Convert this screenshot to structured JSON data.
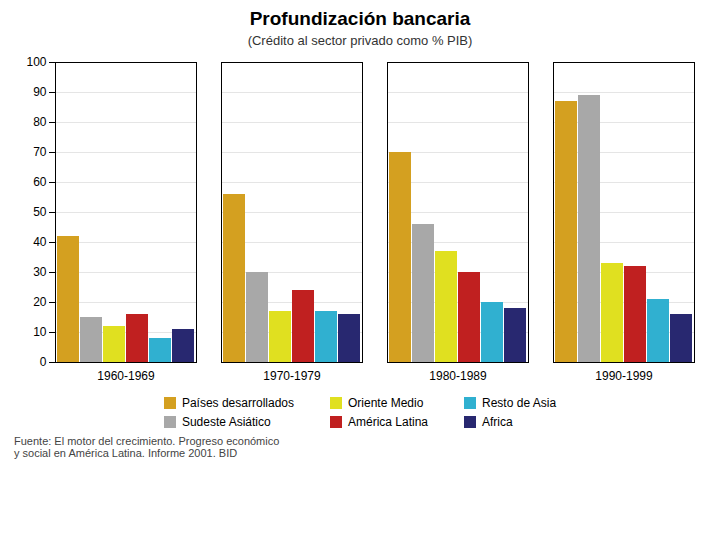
{
  "chart_data": {
    "type": "bar",
    "title": "Profundización bancaria",
    "subtitle": "(Crédito al sector privado como % PIB)",
    "caption": "Fuente: El motor del crecimiento. Progreso económico\ny social en América Latina. Informe 2001. BID",
    "categories": [
      "1960-1969",
      "1970-1979",
      "1980-1989",
      "1990-1999"
    ],
    "series": [
      {
        "name": "Países desarrollados",
        "color": "#D4A020",
        "values": [
          42,
          56,
          70,
          87
        ]
      },
      {
        "name": "Sudeste Asiático",
        "color": "#A8A8A8",
        "values": [
          15,
          30,
          46,
          89
        ]
      },
      {
        "name": "Oriente Medio",
        "color": "#E0E020",
        "values": [
          12,
          17,
          37,
          33
        ]
      },
      {
        "name": "América Latina",
        "color": "#C02020",
        "values": [
          16,
          24,
          30,
          32
        ]
      },
      {
        "name": "Resto de Asia",
        "color": "#30B0D0",
        "values": [
          8,
          17,
          20,
          21
        ]
      },
      {
        "name": "Africa",
        "color": "#282870",
        "values": [
          11,
          16,
          18,
          16
        ]
      }
    ],
    "ylim": [
      0,
      100
    ],
    "yticks": [
      0,
      10,
      20,
      30,
      40,
      50,
      60,
      70,
      80,
      90,
      100
    ],
    "grid": true,
    "legend": "bottom"
  }
}
